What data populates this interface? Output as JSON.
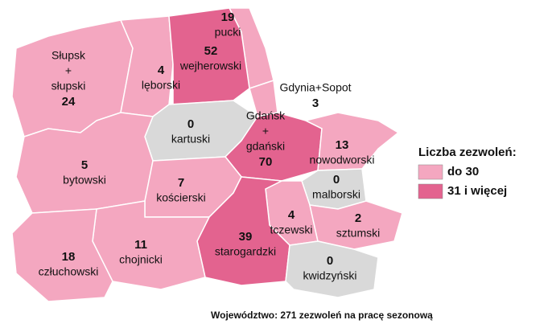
{
  "chart_data": {
    "type": "choropleth",
    "regions": [
      {
        "name": [
          "Słupsk",
          "+",
          "słupski"
        ],
        "value": 24,
        "color": "#f4a7c0"
      },
      {
        "name": [
          "lęborski"
        ],
        "value": 4,
        "color": "#f4a7c0"
      },
      {
        "name": [
          "pucki"
        ],
        "value": 19,
        "color": "#f4a7c0"
      },
      {
        "name": [
          "wejherowski"
        ],
        "value": 52,
        "color": "#e3638f"
      },
      {
        "name": [
          "Gdynia+Sopot"
        ],
        "value": 3,
        "color": "#f4a7c0"
      },
      {
        "name": [
          "kartuski"
        ],
        "value": 0,
        "color": "#d9d9d9"
      },
      {
        "name": [
          "Gdańsk",
          "+",
          "gdański"
        ],
        "value": 70,
        "color": "#e3638f"
      },
      {
        "name": [
          "nowodworski"
        ],
        "value": 13,
        "color": "#f4a7c0"
      },
      {
        "name": [
          "bytowski"
        ],
        "value": 5,
        "color": "#f4a7c0"
      },
      {
        "name": [
          "kościerski"
        ],
        "value": 7,
        "color": "#f4a7c0"
      },
      {
        "name": [
          "malborski"
        ],
        "value": 0,
        "color": "#d9d9d9"
      },
      {
        "name": [
          "tczewski"
        ],
        "value": 4,
        "color": "#f4a7c0"
      },
      {
        "name": [
          "sztumski"
        ],
        "value": 2,
        "color": "#f4a7c0"
      },
      {
        "name": [
          "starogardzki"
        ],
        "value": 39,
        "color": "#e3638f"
      },
      {
        "name": [
          "chojnicki"
        ],
        "value": 11,
        "color": "#f4a7c0"
      },
      {
        "name": [
          "człuchowski"
        ],
        "value": 18,
        "color": "#f4a7c0"
      },
      {
        "name": [
          "kwidzyński"
        ],
        "value": 0,
        "color": "#d9d9d9"
      }
    ],
    "legend": {
      "title": "Liczba zezwoleń:",
      "items": [
        {
          "label": "do 30",
          "color": "#f4a7c0"
        },
        {
          "label": "31 i więcej",
          "color": "#e3638f"
        }
      ]
    },
    "footer": "Województwo: 271  zezwoleń na pracę sezonową"
  }
}
